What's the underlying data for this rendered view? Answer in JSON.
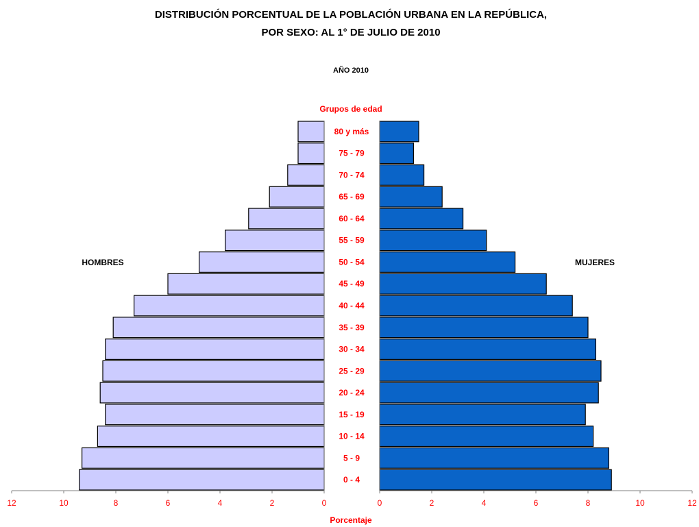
{
  "chart_data": {
    "type": "bar",
    "orientation": "horizontal-population-pyramid",
    "title_line1": "DISTRIBUCIÓN PORCENTUAL DE LA POBLACIÓN URBANA EN LA REPÚBLICA,",
    "title_line2": "POR SEXO: AL 1° DE JULIO DE 2010",
    "subtitle": "AÑO 2010",
    "category_axis_label": "Grupos de edad",
    "xlabel": "Porcentaje",
    "categories": [
      "80 y más",
      "75 - 79",
      "70 - 74",
      "65 - 69",
      "60 - 64",
      "55 - 59",
      "50 - 54",
      "45 - 49",
      "40 - 44",
      "35 - 39",
      "30 - 34",
      "25 - 29",
      "20 - 24",
      "15 - 19",
      "10 - 14",
      "5 - 9",
      "0 - 4"
    ],
    "series": [
      {
        "name": "HOMBRES",
        "color": "#ccccff",
        "values": [
          1.0,
          1.0,
          1.4,
          2.1,
          2.9,
          3.8,
          4.8,
          6.0,
          7.3,
          8.1,
          8.4,
          8.5,
          8.6,
          8.4,
          8.7,
          9.3,
          9.4
        ]
      },
      {
        "name": "MUJERES",
        "color": "#0a64c8",
        "values": [
          1.5,
          1.3,
          1.7,
          2.4,
          3.2,
          4.1,
          5.2,
          6.4,
          7.4,
          8.0,
          8.3,
          8.5,
          8.4,
          7.9,
          8.2,
          8.8,
          8.9
        ]
      }
    ],
    "xlim": [
      0,
      12
    ],
    "xticks": [
      "0",
      "2",
      "4",
      "6",
      "8",
      "10",
      "12"
    ],
    "label_color": "#ff0000"
  }
}
